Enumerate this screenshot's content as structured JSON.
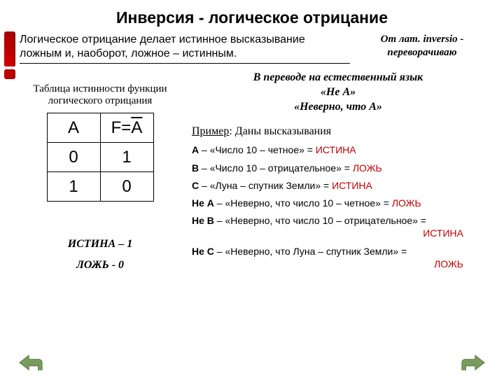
{
  "title": "Инверсия - логическое отрицание",
  "definition": "Логическое отрицание делает истинное высказывание ложным и, наоборот, ложное – истинным.",
  "etymology_line1": "От лат. inversio -",
  "etymology_line2": "переворачиваю",
  "table": {
    "caption": "Таблица истинности функции логического отрицания",
    "header_a": "A",
    "header_f_prefix": "F=",
    "header_f_var": "A",
    "rows": [
      {
        "a": "0",
        "f": "1"
      },
      {
        "a": "1",
        "f": "0"
      }
    ]
  },
  "legend": {
    "true": "ИСТИНА – 1",
    "false": "ЛОЖЬ - 0"
  },
  "translation": {
    "line1": "В переводе на естественный язык",
    "line2": "«Не А»",
    "line3": "«Неверно, что А»"
  },
  "example_head_label": "Пример",
  "example_head_text": ": Даны высказывания",
  "examples": [
    {
      "lbl": "А",
      "text": " – «Число 10 – четное» = ",
      "result": "ИСТИНА",
      "result_color": "#c00000"
    },
    {
      "lbl": "В",
      "text": " – «Число 10 – отрицательное» = ",
      "result": "ЛОЖЬ",
      "result_color": "#c00000"
    },
    {
      "lbl": "С",
      "text": " – «Луна – спутник Земли» = ",
      "result": "ИСТИНА",
      "result_color": "#c00000"
    }
  ],
  "negations": [
    {
      "lbl": "Не А",
      "text": " – «Неверно, что число 10 – четное» = ",
      "result": "ЛОЖЬ",
      "result_color": "#c00000",
      "wrap": false
    },
    {
      "lbl": "Не В",
      "text": " – «Неверно, что число 10 – отрицательное» = ",
      "result": "ИСТИНА",
      "result_color": "#c00000",
      "wrap": true
    },
    {
      "lbl": "Не С",
      "text": " – «Неверно, что Луна – спутник Земли» = ",
      "result": "ЛОЖЬ",
      "result_color": "#c00000",
      "wrap": true
    }
  ],
  "colors": {
    "accent": "#c00000",
    "arrow_fill": "#7a9b5e",
    "arrow_stroke": "#5a7a42"
  }
}
